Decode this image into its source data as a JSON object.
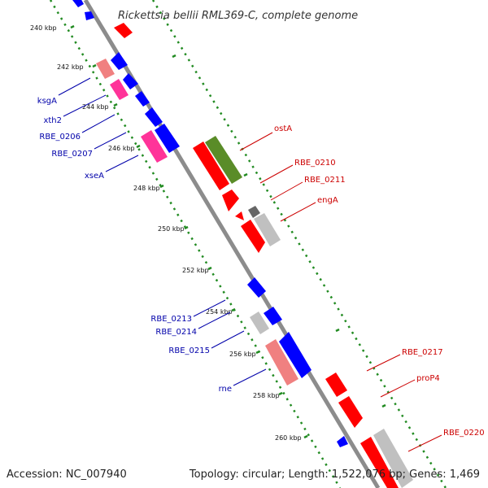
{
  "title": "Rickettsia bellii RML369-C, complete genome",
  "footer": {
    "accession": "Accession: NC_007940",
    "summary": "Topology: circular; Length: 1,522,076 bp; Genes: 1,469"
  },
  "colors": {
    "backbone": "#8c8c8c",
    "gc_track": "#228b22",
    "forward_label": "#cc0000",
    "reverse_label": "#0000aa",
    "feature_red": "#ff0000",
    "feature_blue": "#0000ff",
    "feature_pink": "#ff3399",
    "feature_salmon": "#f08080",
    "feature_grey": "#c0c0c0",
    "feature_dark": "#666666",
    "feature_olive": "#5a8c28"
  },
  "ticks": [
    "240 kbp",
    "242 kbp",
    "244 kbp",
    "246 kbp",
    "248 kbp",
    "250 kbp",
    "252 kbp",
    "254 kbp",
    "256 kbp",
    "258 kbp",
    "260 kbp"
  ],
  "labels_reverse": [
    "ksgA",
    "xth2",
    "RBE_0206",
    "RBE_0207",
    "xseA",
    "RBE_0213",
    "RBE_0214",
    "RBE_0215",
    "rne"
  ],
  "labels_forward": [
    "ostA",
    "RBE_0210",
    "RBE_0211",
    "engA",
    "RBE_0217",
    "proP4",
    "RBE_0220"
  ]
}
